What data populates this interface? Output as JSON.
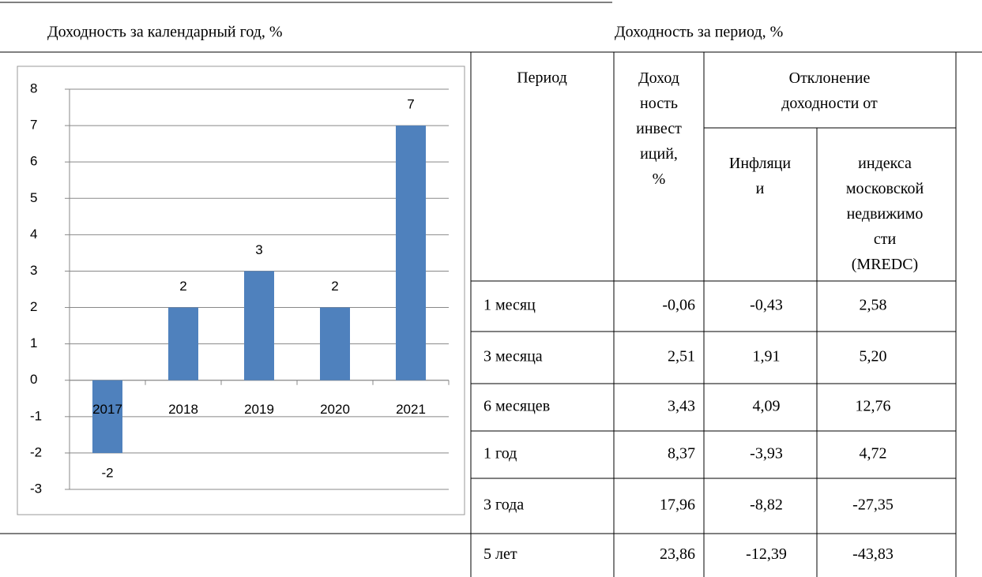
{
  "left_title": "Доходность за календарный год, %",
  "right_title": "Доходность за период, %",
  "chart_data": {
    "type": "bar",
    "categories": [
      "2017",
      "2018",
      "2019",
      "2020",
      "2021"
    ],
    "values": [
      -2,
      2,
      3,
      2,
      7
    ],
    "color": "#4f81bd",
    "ylim": [
      -3,
      8
    ],
    "yticks": [
      -3,
      -2,
      -1,
      0,
      1,
      2,
      3,
      4,
      5,
      6,
      7,
      8
    ],
    "grid": true
  },
  "table": {
    "header": {
      "period": "Период",
      "yield": "Доход\nность\nинвест\nиций,\n%",
      "deviation": "Отклонение\nдоходности от",
      "inflation": "Инфляци\nи",
      "index": "индекса\nмосковской\nнедвижимо\nсти\n(MREDC)"
    },
    "rows": [
      [
        "1 месяц",
        "-0,06",
        "-0,43",
        "2,58"
      ],
      [
        "3 месяца",
        "2,51",
        "1,91",
        "5,20"
      ],
      [
        "6 месяцев",
        "3,43",
        "4,09",
        "12,76"
      ],
      [
        "1 год",
        "8,37",
        "-3,93",
        "4,72"
      ],
      [
        "3 года",
        "17,96",
        "-8,82",
        "-27,35"
      ],
      [
        "5 лет",
        "23,86",
        "-12,39",
        "-43,83"
      ]
    ]
  }
}
